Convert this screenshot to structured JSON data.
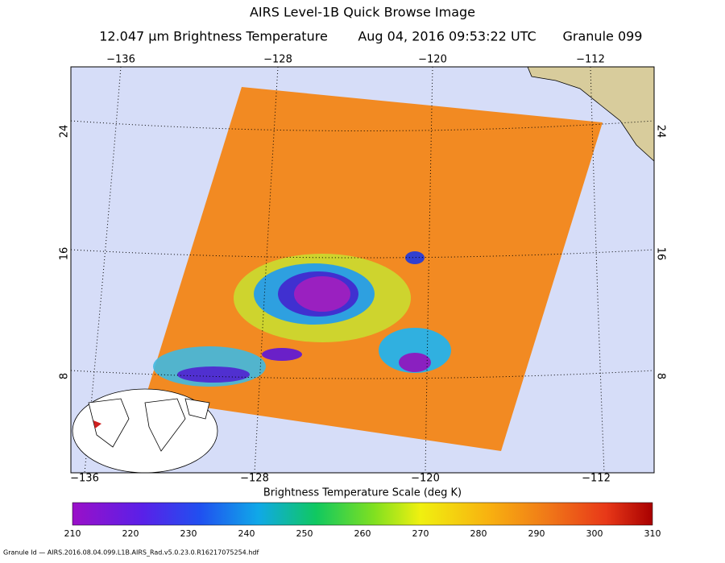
{
  "header": {
    "title": "AIRS Level-1B Quick Browse Image",
    "subtitle": [
      "12.047 μm Brightness Temperature",
      "Aug 04, 2016 09:53:22 UTC",
      "Granule 099"
    ]
  },
  "map": {
    "top_lon_ticks": [
      "−136",
      "−128",
      "−120",
      "−112"
    ],
    "bottom_lon_ticks": [
      "−136",
      "−128",
      "−120",
      "−112"
    ],
    "left_lat_ticks": [
      "24",
      "16",
      "8"
    ],
    "right_lat_ticks": [
      "24",
      "16",
      "8"
    ]
  },
  "colorbar": {
    "label": "Brightness Temperature Scale (deg K)",
    "ticks": [
      210,
      220,
      230,
      240,
      250,
      260,
      270,
      280,
      290,
      300,
      310
    ]
  },
  "footer": "Granule Id — AIRS.2016.08.04.099.L1B.AIRS_Rad.v5.0.23.0.R16217075254.hdf"
}
